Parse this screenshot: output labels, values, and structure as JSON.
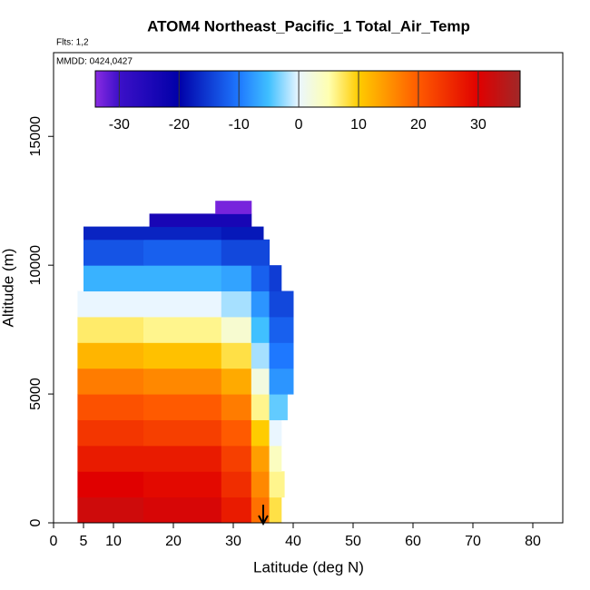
{
  "chart_data": {
    "type": "heatmap",
    "title": "ATOM4 Northeast_Pacific_1 Total_Air_Temp",
    "annotations": [
      "Flts: 1,2",
      "MMDD: 0424,0427"
    ],
    "x_label": "Latitude (deg N)",
    "y_label": "Altitude (m)",
    "xlim": [
      0,
      85
    ],
    "xticks": [
      0,
      5,
      10,
      20,
      30,
      40,
      50,
      60,
      70,
      80
    ],
    "ylim": [
      0,
      18250
    ],
    "yticks": [
      0,
      5000,
      10000,
      15000
    ],
    "rows": [
      {
        "alt": [
          0,
          1000
        ],
        "lat": [
          4,
          15,
          28,
          33,
          36,
          38
        ],
        "temps": [
          32,
          31,
          27,
          18,
          8
        ]
      },
      {
        "alt": [
          1000,
          2000
        ],
        "lat": [
          4,
          15,
          28,
          33,
          36,
          38.5
        ],
        "temps": [
          30,
          29,
          25,
          16,
          6
        ]
      },
      {
        "alt": [
          2000,
          3000
        ],
        "lat": [
          4,
          15,
          28,
          33,
          36,
          38
        ],
        "temps": [
          27,
          27,
          23,
          14,
          4
        ]
      },
      {
        "alt": [
          3000,
          4000
        ],
        "lat": [
          4,
          15,
          28,
          33,
          36,
          38
        ],
        "temps": [
          24,
          23,
          20,
          10,
          0
        ]
      },
      {
        "alt": [
          4000,
          5000
        ],
        "lat": [
          4,
          15,
          28,
          33,
          36,
          39
        ],
        "temps": [
          21,
          20,
          17,
          6,
          -4
        ]
      },
      {
        "alt": [
          5000,
          6000
        ],
        "lat": [
          4,
          15,
          28,
          33,
          36,
          40
        ],
        "temps": [
          17,
          16,
          13,
          2,
          -8
        ]
      },
      {
        "alt": [
          6000,
          7000
        ],
        "lat": [
          4,
          15,
          28,
          33,
          36,
          40
        ],
        "temps": [
          12,
          11,
          8,
          -2,
          -10
        ]
      },
      {
        "alt": [
          7000,
          8000
        ],
        "lat": [
          4,
          15,
          28,
          33,
          36,
          40
        ],
        "temps": [
          7,
          6,
          3,
          -5,
          -12
        ]
      },
      {
        "alt": [
          8000,
          9000
        ],
        "lat": [
          4,
          15,
          28,
          33,
          36,
          40
        ],
        "temps": [
          0,
          0,
          -2,
          -8,
          -14
        ]
      },
      {
        "alt": [
          9000,
          10000
        ],
        "lat": [
          5,
          15,
          28,
          33,
          36,
          38
        ],
        "temps": [
          -6,
          -6,
          -7,
          -12,
          -15
        ]
      },
      {
        "alt": [
          10000,
          11000
        ],
        "lat": [
          5,
          15,
          28,
          36
        ],
        "temps": [
          -13,
          -12,
          -14
        ]
      },
      {
        "alt": [
          11000,
          11500
        ],
        "lat": [
          5,
          15,
          28,
          35
        ],
        "temps": [
          -17,
          -17,
          -18
        ]
      },
      {
        "alt": [
          11500,
          12000
        ],
        "lat": [
          16,
          28,
          33
        ],
        "temps": [
          -24,
          -24
        ]
      },
      {
        "alt": [
          12000,
          12500
        ],
        "lat": [
          27,
          33
        ],
        "temps": [
          -33
        ]
      }
    ],
    "marker_x": 35,
    "colorbar": {
      "lim": [
        -34,
        37
      ],
      "ticks": [
        -30,
        -20,
        -10,
        0,
        10,
        20,
        30
      ],
      "stops": [
        -34,
        -30,
        -20,
        -10,
        -5,
        0,
        5,
        10,
        20,
        30,
        37
      ],
      "colors": [
        "#8a2be2",
        "#3c10c8",
        "#0000a8",
        "#1e78ff",
        "#40c0ff",
        "#eaf6ff",
        "#ffffb0",
        "#ffcc00",
        "#ff5a00",
        "#e00000",
        "#a02828"
      ]
    }
  }
}
